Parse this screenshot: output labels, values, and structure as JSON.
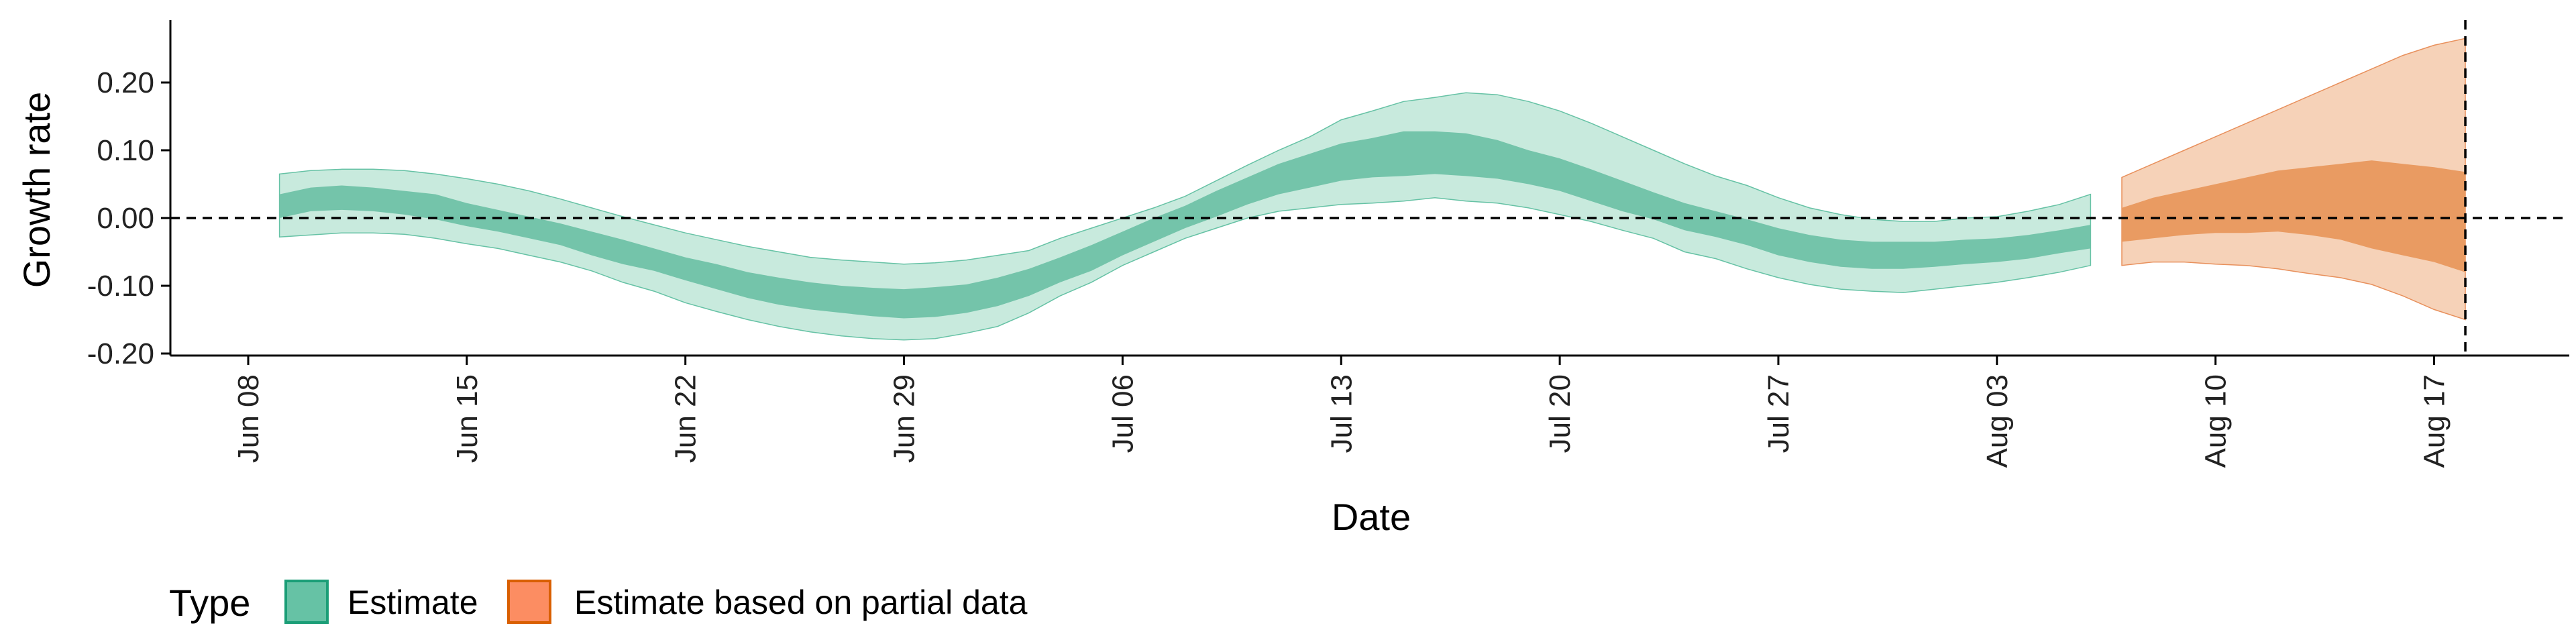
{
  "chart_data": {
    "type": "area",
    "xlabel": "Date",
    "ylabel": "Growth rate",
    "ylim": [
      -0.2,
      0.2
    ],
    "y_ticks": [
      "-0.20",
      "-0.10",
      "0.00",
      "0.10",
      "0.20"
    ],
    "x_ticks": [
      "Jun 08",
      "Jun 15",
      "Jun 22",
      "Jun 29",
      "Jul 06",
      "Jul 13",
      "Jul 20",
      "Jul 27",
      "Aug 03",
      "Aug 10",
      "Aug 17"
    ],
    "reference_lines": {
      "y": 0.0,
      "x": "Aug 18"
    },
    "legend": {
      "title": "Type",
      "position": "bottom-left",
      "entries": [
        "Estimate",
        "Estimate based on partial data"
      ]
    },
    "colors": {
      "Estimate": "#66c2a5",
      "Estimate based on partial data": "#fc8d62"
    },
    "series": [
      {
        "name": "Estimate",
        "x": [
          "Jun 09",
          "Jun 10",
          "Jun 11",
          "Jun 12",
          "Jun 13",
          "Jun 14",
          "Jun 15",
          "Jun 16",
          "Jun 17",
          "Jun 18",
          "Jun 19",
          "Jun 20",
          "Jun 21",
          "Jun 22",
          "Jun 23",
          "Jun 24",
          "Jun 25",
          "Jun 26",
          "Jun 27",
          "Jun 28",
          "Jun 29",
          "Jun 30",
          "Jul 01",
          "Jul 02",
          "Jul 03",
          "Jul 04",
          "Jul 05",
          "Jul 06",
          "Jul 07",
          "Jul 08",
          "Jul 09",
          "Jul 10",
          "Jul 11",
          "Jul 12",
          "Jul 13",
          "Jul 14",
          "Jul 15",
          "Jul 16",
          "Jul 17",
          "Jul 18",
          "Jul 19",
          "Jul 20",
          "Jul 21",
          "Jul 22",
          "Jul 23",
          "Jul 24",
          "Jul 25",
          "Jul 26",
          "Jul 27",
          "Jul 28",
          "Jul 29",
          "Jul 30",
          "Jul 31",
          "Aug 01",
          "Aug 02",
          "Aug 03",
          "Aug 04",
          "Aug 05",
          "Aug 06"
        ],
        "lower90": [
          -0.028,
          -0.025,
          -0.022,
          -0.022,
          -0.024,
          -0.03,
          -0.038,
          -0.045,
          -0.055,
          -0.065,
          -0.078,
          -0.095,
          -0.108,
          -0.125,
          -0.138,
          -0.15,
          -0.16,
          -0.168,
          -0.174,
          -0.178,
          -0.18,
          -0.178,
          -0.17,
          -0.16,
          -0.14,
          -0.115,
          -0.095,
          -0.07,
          -0.05,
          -0.03,
          -0.015,
          0.0,
          0.01,
          0.015,
          0.02,
          0.022,
          0.025,
          0.03,
          0.025,
          0.022,
          0.015,
          0.005,
          -0.005,
          -0.018,
          -0.03,
          -0.05,
          -0.06,
          -0.075,
          -0.088,
          -0.098,
          -0.105,
          -0.108,
          -0.11,
          -0.105,
          -0.1,
          -0.095,
          -0.088,
          -0.08,
          -0.07
        ],
        "lower50": [
          0.0,
          0.01,
          0.012,
          0.01,
          0.005,
          -0.002,
          -0.012,
          -0.02,
          -0.03,
          -0.04,
          -0.055,
          -0.068,
          -0.078,
          -0.092,
          -0.105,
          -0.118,
          -0.128,
          -0.135,
          -0.14,
          -0.145,
          -0.148,
          -0.146,
          -0.14,
          -0.13,
          -0.115,
          -0.095,
          -0.078,
          -0.055,
          -0.035,
          -0.015,
          0.002,
          0.02,
          0.035,
          0.045,
          0.055,
          0.06,
          0.062,
          0.065,
          0.062,
          0.058,
          0.05,
          0.04,
          0.025,
          0.01,
          -0.002,
          -0.018,
          -0.028,
          -0.04,
          -0.055,
          -0.065,
          -0.072,
          -0.075,
          -0.075,
          -0.072,
          -0.068,
          -0.065,
          -0.06,
          -0.052,
          -0.045
        ],
        "upper50": [
          0.035,
          0.045,
          0.048,
          0.045,
          0.04,
          0.035,
          0.022,
          0.012,
          0.002,
          -0.008,
          -0.02,
          -0.032,
          -0.045,
          -0.058,
          -0.068,
          -0.08,
          -0.088,
          -0.095,
          -0.1,
          -0.103,
          -0.105,
          -0.102,
          -0.098,
          -0.088,
          -0.075,
          -0.058,
          -0.04,
          -0.02,
          0.0,
          0.018,
          0.04,
          0.06,
          0.08,
          0.095,
          0.11,
          0.118,
          0.128,
          0.128,
          0.125,
          0.115,
          0.1,
          0.088,
          0.072,
          0.055,
          0.038,
          0.022,
          0.01,
          -0.002,
          -0.015,
          -0.025,
          -0.032,
          -0.035,
          -0.035,
          -0.035,
          -0.032,
          -0.03,
          -0.025,
          -0.018,
          -0.01
        ],
        "upper90": [
          0.065,
          0.07,
          0.072,
          0.072,
          0.07,
          0.065,
          0.058,
          0.05,
          0.04,
          0.028,
          0.015,
          0.002,
          -0.01,
          -0.022,
          -0.032,
          -0.042,
          -0.05,
          -0.058,
          -0.062,
          -0.065,
          -0.068,
          -0.066,
          -0.062,
          -0.055,
          -0.048,
          -0.03,
          -0.015,
          0.0,
          0.015,
          0.032,
          0.055,
          0.078,
          0.1,
          0.12,
          0.145,
          0.158,
          0.172,
          0.178,
          0.185,
          0.182,
          0.172,
          0.158,
          0.14,
          0.12,
          0.1,
          0.08,
          0.062,
          0.048,
          0.03,
          0.015,
          0.005,
          -0.002,
          -0.005,
          -0.005,
          0.0,
          0.002,
          0.01,
          0.02,
          0.035
        ]
      },
      {
        "name": "Estimate based on partial data",
        "x": [
          "Aug 07",
          "Aug 08",
          "Aug 09",
          "Aug 10",
          "Aug 11",
          "Aug 12",
          "Aug 13",
          "Aug 14",
          "Aug 15",
          "Aug 16",
          "Aug 17",
          "Aug 18"
        ],
        "lower90": [
          -0.07,
          -0.065,
          -0.065,
          -0.068,
          -0.07,
          -0.075,
          -0.082,
          -0.088,
          -0.098,
          -0.115,
          -0.135,
          -0.15
        ],
        "lower50": [
          -0.035,
          -0.03,
          -0.025,
          -0.022,
          -0.022,
          -0.02,
          -0.025,
          -0.032,
          -0.045,
          -0.055,
          -0.065,
          -0.08
        ],
        "upper50": [
          0.015,
          0.03,
          0.04,
          0.05,
          0.06,
          0.07,
          0.075,
          0.08,
          0.085,
          0.08,
          0.075,
          0.068
        ],
        "upper90": [
          0.06,
          0.08,
          0.1,
          0.12,
          0.14,
          0.16,
          0.18,
          0.2,
          0.22,
          0.24,
          0.255,
          0.265
        ]
      }
    ]
  }
}
